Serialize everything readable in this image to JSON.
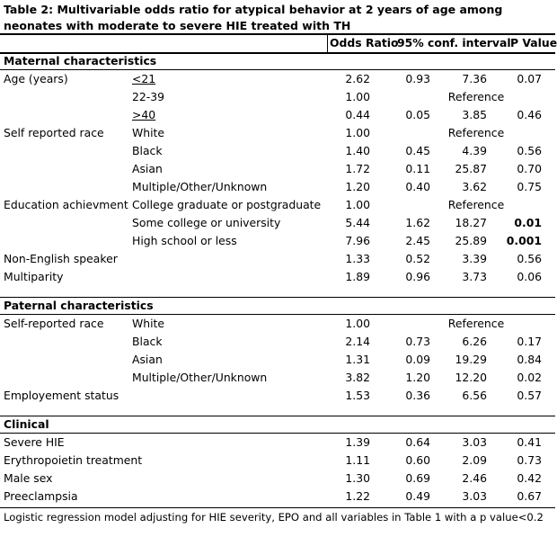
{
  "title": "Table 2: Multivariable odds ratio for atypical behavior at 2 years of age among neonates with moderate to severe HIE treated with TH",
  "columns": {
    "odds_ratio": "Odds Ratio",
    "ci": "95% conf. interval",
    "p_value": "P Value"
  },
  "sections": [
    {
      "heading": "Maternal characteristics",
      "rows": [
        {
          "label": "Age (years)",
          "sub": "<21",
          "sub_ul": true,
          "or": "2.62",
          "lo": "0.93",
          "hi": "7.36",
          "p": "0.07"
        },
        {
          "label": "",
          "sub": "22-39",
          "or": "1.00",
          "ref": "Reference",
          "p": ""
        },
        {
          "label": "",
          "sub": ">40",
          "sub_ul": true,
          "or": "0.44",
          "lo": "0.05",
          "hi": "3.85",
          "p": "0.46"
        },
        {
          "label": "Self reported race",
          "sub": "White",
          "or": "1.00",
          "ref": "Reference",
          "p": ""
        },
        {
          "label": "",
          "sub": "Black",
          "or": "1.40",
          "lo": "0.45",
          "hi": "4.39",
          "p": "0.56"
        },
        {
          "label": "",
          "sub": "Asian",
          "or": "1.72",
          "lo": "0.11",
          "hi": "25.87",
          "p": "0.70"
        },
        {
          "label": "",
          "sub": "Multiple/Other/Unknown",
          "or": "1.20",
          "lo": "0.40",
          "hi": "3.62",
          "p": "0.75"
        },
        {
          "label": "Education achievment",
          "sub": "College graduate or postgraduate",
          "or": "1.00",
          "ref": "Reference",
          "p": ""
        },
        {
          "label": "",
          "sub": "Some college or university",
          "or": "5.44",
          "lo": "1.62",
          "hi": "18.27",
          "p": "0.01",
          "p_bold": true
        },
        {
          "label": "",
          "sub": "High school or less",
          "or": "7.96",
          "lo": "2.45",
          "hi": "25.89",
          "p": "0.001",
          "p_bold": true
        },
        {
          "label": "Non-English speaker",
          "sub": "",
          "or": "1.33",
          "lo": "0.52",
          "hi": "3.39",
          "p": "0.56"
        },
        {
          "label": "Multiparity",
          "sub": "",
          "or": "1.89",
          "lo": "0.96",
          "hi": "3.73",
          "p": "0.06"
        }
      ]
    },
    {
      "heading": "Paternal characteristics",
      "rows": [
        {
          "label": "Self-reported race",
          "sub": "White",
          "or": "1.00",
          "ref": "Reference",
          "p": ""
        },
        {
          "label": "",
          "sub": "Black",
          "or": "2.14",
          "lo": "0.73",
          "hi": "6.26",
          "p": "0.17"
        },
        {
          "label": "",
          "sub": "Asian",
          "or": "1.31",
          "lo": "0.09",
          "hi": "19.29",
          "p": "0.84"
        },
        {
          "label": "",
          "sub": "Multiple/Other/Unknown",
          "or": "3.82",
          "lo": "1.20",
          "hi": "12.20",
          "p": "0.02"
        },
        {
          "label": "Employement status",
          "sub": "",
          "or": "1.53",
          "lo": "0.36",
          "hi": "6.56",
          "p": "0.57"
        }
      ]
    },
    {
      "heading": "Clinical",
      "rows": [
        {
          "label": "Severe HIE",
          "sub": "",
          "or": "1.39",
          "lo": "0.64",
          "hi": "3.03",
          "p": "0.41"
        },
        {
          "label": "Erythropoietin treatment",
          "sub": "",
          "or": "1.11",
          "lo": "0.60",
          "hi": "2.09",
          "p": "0.73"
        },
        {
          "label": "Male sex",
          "sub": "",
          "or": "1.30",
          "lo": "0.69",
          "hi": "2.46",
          "p": "0.42"
        },
        {
          "label": "Preeclampsia",
          "sub": "",
          "or": "1.22",
          "lo": "0.49",
          "hi": "3.03",
          "p": "0.67"
        }
      ]
    }
  ],
  "footnote": "Logistic regression model adjusting for HIE severity, EPO and all variables in Table 1 with a p value<0.2"
}
